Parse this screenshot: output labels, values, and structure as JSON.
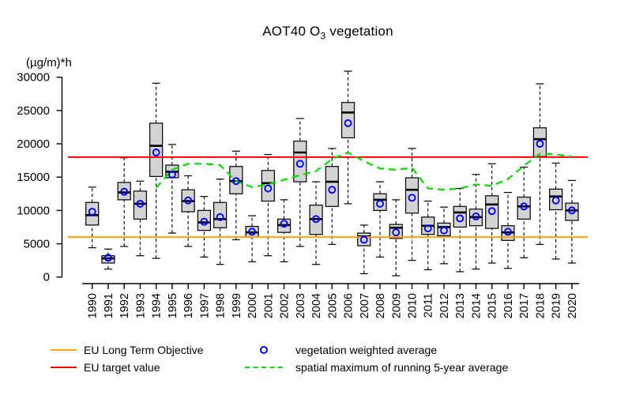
{
  "title": {
    "part1": "AOT40 O",
    "subscript": "3",
    "part2": " vegetation"
  },
  "legend": {
    "items": [
      {
        "label": "EU Long Term Objective",
        "symbol": "line",
        "color": "#FFA500"
      },
      {
        "label": "EU target value",
        "symbol": "line",
        "color": "#FF0000"
      },
      {
        "label": "vegetation weighted average",
        "symbol": "circle",
        "color": "#0000FF"
      },
      {
        "label": "spatial maximum of running 5-year average",
        "symbol": "dashed-line",
        "color": "#00DC00"
      }
    ]
  },
  "chart_data": {
    "type": "boxplot",
    "title": "AOT40 O3 vegetation",
    "ylabel": "(µg/m)*h",
    "xlabel": "",
    "ylim": [
      0,
      30000
    ],
    "y_ticks": [
      0,
      5000,
      10000,
      15000,
      20000,
      25000,
      30000
    ],
    "grid": false,
    "box_fill": "#D3D3D3",
    "box_stroke": "#000000",
    "categories": [
      "1990",
      "1991",
      "1992",
      "1993",
      "1994",
      "1995",
      "1996",
      "1997",
      "1998",
      "1999",
      "2000",
      "2001",
      "2002",
      "2003",
      "2004",
      "2005",
      "2006",
      "2007",
      "2008",
      "2009",
      "2010",
      "2011",
      "2012",
      "2013",
      "2014",
      "2015",
      "2016",
      "2017",
      "2018",
      "2019",
      "2020"
    ],
    "boxplots": [
      {
        "year": "1990",
        "whisker_low": 4400,
        "q1": 7800,
        "median": 9300,
        "q3": 11200,
        "whisker_high": 13500
      },
      {
        "year": "1991",
        "whisker_low": 1200,
        "q1": 2100,
        "median": 2800,
        "q3": 3200,
        "whisker_high": 4200
      },
      {
        "year": "1992",
        "whisker_low": 4600,
        "q1": 11600,
        "median": 12700,
        "q3": 14200,
        "whisker_high": 17900
      },
      {
        "year": "1993",
        "whisker_low": 3200,
        "q1": 8700,
        "median": 11000,
        "q3": 12900,
        "whisker_high": 14400
      },
      {
        "year": "1994",
        "whisker_low": 2800,
        "q1": 15100,
        "median": 19700,
        "q3": 23100,
        "whisker_high": 29100
      },
      {
        "year": "1995",
        "whisker_low": 6600,
        "q1": 14900,
        "median": 15800,
        "q3": 16800,
        "whisker_high": 19900
      },
      {
        "year": "1996",
        "whisker_low": 4600,
        "q1": 9800,
        "median": 11400,
        "q3": 13100,
        "whisker_high": 15200
      },
      {
        "year": "1997",
        "whisker_low": 3000,
        "q1": 7000,
        "median": 8200,
        "q3": 10000,
        "whisker_high": 12100
      },
      {
        "year": "1998",
        "whisker_low": 1900,
        "q1": 7400,
        "median": 8700,
        "q3": 11200,
        "whisker_high": 14700
      },
      {
        "year": "1999",
        "whisker_low": 5600,
        "q1": 12500,
        "median": 14400,
        "q3": 16600,
        "whisker_high": 18900
      },
      {
        "year": "2000",
        "whisker_low": 2300,
        "q1": 6000,
        "median": 6700,
        "q3": 7600,
        "whisker_high": 9200
      },
      {
        "year": "2001",
        "whisker_low": 3200,
        "q1": 11400,
        "median": 14100,
        "q3": 16000,
        "whisker_high": 18400
      },
      {
        "year": "2002",
        "whisker_low": 2300,
        "q1": 6700,
        "median": 7800,
        "q3": 8700,
        "whisker_high": 11600
      },
      {
        "year": "2003",
        "whisker_low": 4600,
        "q1": 14300,
        "median": 18700,
        "q3": 20400,
        "whisker_high": 23800
      },
      {
        "year": "2004",
        "whisker_low": 1900,
        "q1": 6400,
        "median": 8700,
        "q3": 10800,
        "whisker_high": 14300
      },
      {
        "year": "2005",
        "whisker_low": 4900,
        "q1": 10600,
        "median": 14300,
        "q3": 16600,
        "whisker_high": 19300
      },
      {
        "year": "2006",
        "whisker_low": 11000,
        "q1": 20900,
        "median": 24700,
        "q3": 26200,
        "whisker_high": 30900
      },
      {
        "year": "2007",
        "whisker_low": 500,
        "q1": 4700,
        "median": 6100,
        "q3": 6600,
        "whisker_high": 7800
      },
      {
        "year": "2008",
        "whisker_low": 3000,
        "q1": 10000,
        "median": 11600,
        "q3": 12500,
        "whisker_high": 14300
      },
      {
        "year": "2009",
        "whisker_low": 200,
        "q1": 5800,
        "median": 7400,
        "q3": 7900,
        "whisker_high": 11600
      },
      {
        "year": "2010",
        "whisker_low": 2500,
        "q1": 9600,
        "median": 13100,
        "q3": 14900,
        "whisker_high": 19300
      },
      {
        "year": "2011",
        "whisker_low": 1100,
        "q1": 6400,
        "median": 7700,
        "q3": 9000,
        "whisker_high": 11400
      },
      {
        "year": "2012",
        "whisker_low": 2000,
        "q1": 6200,
        "median": 7500,
        "q3": 8100,
        "whisker_high": 10500
      },
      {
        "year": "2013",
        "whisker_low": 800,
        "q1": 7500,
        "median": 9700,
        "q3": 10600,
        "whisker_high": 13300
      },
      {
        "year": "2014",
        "whisker_low": 1200,
        "q1": 7700,
        "median": 9000,
        "q3": 10200,
        "whisker_high": 15400
      },
      {
        "year": "2015",
        "whisker_low": 2100,
        "q1": 7300,
        "median": 10900,
        "q3": 12200,
        "whisker_high": 17000
      },
      {
        "year": "2016",
        "whisker_low": 1300,
        "q1": 5500,
        "median": 6700,
        "q3": 7700,
        "whisker_high": 12700
      },
      {
        "year": "2017",
        "whisker_low": 2900,
        "q1": 8700,
        "median": 10600,
        "q3": 12000,
        "whisker_high": 16500
      },
      {
        "year": "2018",
        "whisker_low": 4900,
        "q1": 18100,
        "median": 20700,
        "q3": 22400,
        "whisker_high": 29000
      },
      {
        "year": "2019",
        "whisker_low": 2700,
        "q1": 10100,
        "median": 12100,
        "q3": 13200,
        "whisker_high": 17100
      },
      {
        "year": "2020",
        "whisker_low": 2100,
        "q1": 8500,
        "median": 10000,
        "q3": 11100,
        "whisker_high": 14500
      }
    ],
    "points_series": {
      "name": "vegetation weighted average",
      "color": "#0000FF",
      "values": [
        9800,
        2900,
        12800,
        11000,
        18700,
        15400,
        11500,
        8300,
        9000,
        14400,
        6800,
        13300,
        8000,
        17000,
        8700,
        13100,
        23100,
        5600,
        11000,
        6700,
        11900,
        7300,
        7000,
        8800,
        9100,
        9900,
        6800,
        10600,
        20000,
        11500,
        10000
      ]
    },
    "line_series": {
      "name": "spatial maximum of running 5-year average",
      "color": "#00DC00",
      "style": "dashed",
      "start_year": "1994",
      "values": [
        13400,
        16100,
        17000,
        17000,
        16800,
        14400,
        13500,
        13900,
        14600,
        15300,
        15900,
        17700,
        18700,
        17400,
        16300,
        16100,
        16400,
        13300,
        13100,
        13300,
        13900,
        13700,
        14700,
        16700,
        18500,
        18400,
        18100
      ]
    },
    "reference_lines": [
      {
        "name": "EU Long Term Objective",
        "value": 6000,
        "color": "#FFA500"
      },
      {
        "name": "EU target value",
        "value": 18000,
        "color": "#FF0000"
      }
    ],
    "legend_position": "bottom"
  }
}
